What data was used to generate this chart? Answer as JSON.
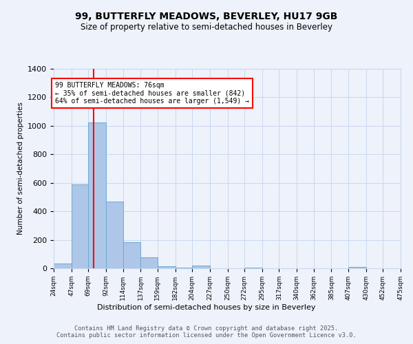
{
  "title1": "99, BUTTERFLY MEADOWS, BEVERLEY, HU17 9GB",
  "title2": "Size of property relative to semi-detached houses in Beverley",
  "xlabel": "Distribution of semi-detached houses by size in Beverley",
  "ylabel": "Number of semi-detached properties",
  "bins": [
    24,
    47,
    69,
    92,
    114,
    137,
    159,
    182,
    204,
    227,
    250,
    272,
    295,
    317,
    340,
    362,
    385,
    407,
    430,
    452,
    475
  ],
  "counts": [
    35,
    590,
    1025,
    470,
    185,
    75,
    15,
    5,
    20,
    0,
    0,
    5,
    0,
    0,
    0,
    0,
    0,
    10,
    0,
    0
  ],
  "bar_color": "#aec6e8",
  "bar_edge_color": "#6aaad4",
  "red_line_x": 76,
  "annotation_text": "99 BUTTERFLY MEADOWS: 76sqm\n← 35% of semi-detached houses are smaller (842)\n64% of semi-detached houses are larger (1,549) →",
  "annotation_box_color": "white",
  "annotation_box_edge_color": "red",
  "ylim": [
    0,
    1400
  ],
  "yticks": [
    0,
    200,
    400,
    600,
    800,
    1000,
    1200,
    1400
  ],
  "tick_labels": [
    "24sqm",
    "47sqm",
    "69sqm",
    "92sqm",
    "114sqm",
    "137sqm",
    "159sqm",
    "182sqm",
    "204sqm",
    "227sqm",
    "250sqm",
    "272sqm",
    "295sqm",
    "317sqm",
    "340sqm",
    "362sqm",
    "385sqm",
    "407sqm",
    "430sqm",
    "452sqm",
    "475sqm"
  ],
  "footer": "Contains HM Land Registry data © Crown copyright and database right 2025.\nContains public sector information licensed under the Open Government Licence v3.0.",
  "bg_color": "#eef2fb",
  "grid_color": "#c8d8ee"
}
